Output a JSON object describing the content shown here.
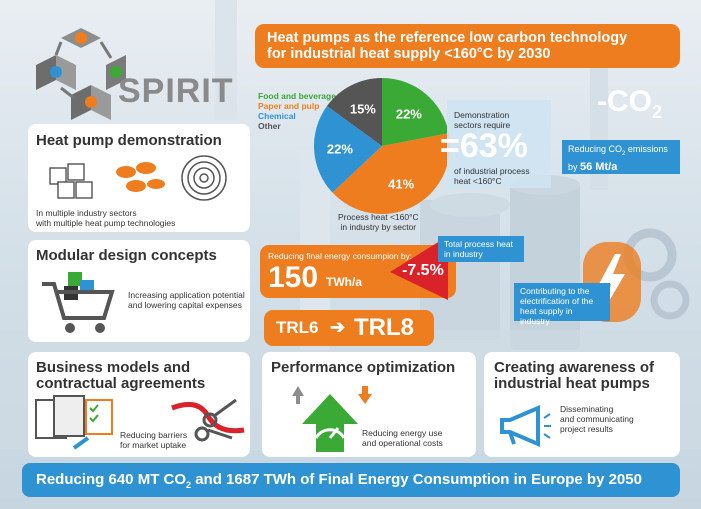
{
  "brand": {
    "name": "SPIRIT"
  },
  "headline": {
    "line1": "Heat pumps as the reference low carbon technology",
    "line2": "for industrial heat supply <160°C by 2030"
  },
  "pie": {
    "legend": [
      {
        "label": "Food and beverage",
        "color": "#3aa935"
      },
      {
        "label": "Paper and pulp",
        "color": "#ee7d1f"
      },
      {
        "label": "Chemical",
        "color": "#2f93d3"
      },
      {
        "label": "Other",
        "color": "#555555"
      }
    ],
    "slices": [
      {
        "label": "Food and beverage",
        "value": 22,
        "text": "22%",
        "color": "#3aa935"
      },
      {
        "label": "Paper and pulp",
        "value": 41,
        "text": "41%",
        "color": "#ee7d1f"
      },
      {
        "label": "Chemical",
        "value": 22,
        "text": "22%",
        "color": "#2f93d3"
      },
      {
        "label": "Other",
        "value": 15,
        "text": "15%",
        "color": "#555555"
      }
    ],
    "caption_line1": "Process heat <160°C",
    "caption_line2": "in industry by sector"
  },
  "demo_stat": {
    "line1": "Demonstration",
    "line2": "sectors require",
    "value": "=63%",
    "sub1": "of industrial process",
    "sub2": "heat <160°C"
  },
  "co2": {
    "big_label": "-CO",
    "big_sub": "2",
    "box_line1a": "Reducing CO",
    "box_line1b": "2",
    "box_line1c": " emissions",
    "box_line2a": "by ",
    "box_line2b": "56 Mt/a"
  },
  "heat_pump_demo": {
    "title": "Heat pump demonstration",
    "text1": "In multiple industry sectors",
    "text2": "with multiple heat pump technologies"
  },
  "energy": {
    "label": "Reducing final energy consumpion by:",
    "value": "150",
    "unit": "TWh/a",
    "pct": "-7.5%"
  },
  "total_heat": {
    "line1": "Total process heat",
    "line2": "in industry"
  },
  "electrification": {
    "line1": "Contributing to the",
    "line2": "electrification of the",
    "line3": "heat supply in industry"
  },
  "modular": {
    "title": "Modular design concepts",
    "text1": "Increasing application potential",
    "text2": "and lowering capital expenses"
  },
  "trl": {
    "from": "TRL6",
    "arrow": "➔",
    "to": "TRL8"
  },
  "business": {
    "title1": "Business models and",
    "title2": "contractual agreements",
    "text1": "Reducing barriers",
    "text2": "for market uptake"
  },
  "performance": {
    "title": "Performance optimization",
    "text1": "Reducing energy use",
    "text2": "and operational costs"
  },
  "awareness": {
    "title1": "Creating awareness of",
    "title2": "industrial heat pumps",
    "text1": "Disseminating",
    "text2": "and communicating",
    "text3": "project results"
  },
  "footer": {
    "part1": "Reducing 640 MT CO",
    "sub": "2",
    "part2": " and 1687 TWh of Final Energy Consumption in Europe by 2050"
  }
}
